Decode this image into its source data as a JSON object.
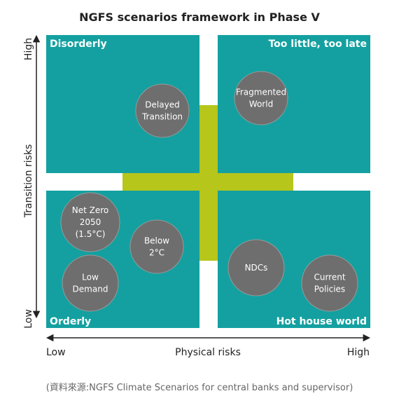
{
  "title": "NGFS scenarios framework in Phase V",
  "quadrants": [
    {
      "label": "Disorderly"
    },
    {
      "label": "Too little, too late"
    },
    {
      "label": "Orderly"
    },
    {
      "label": "Hot house world"
    }
  ],
  "scenarios": [
    {
      "lines": [
        "Delayed",
        "Transition"
      ]
    },
    {
      "lines": [
        "Fragmented",
        "World"
      ]
    },
    {
      "lines": [
        "Net Zero",
        "2050",
        "(1.5°C)"
      ]
    },
    {
      "lines": [
        "Below",
        "2°C"
      ]
    },
    {
      "lines": [
        "Low",
        "Demand"
      ]
    },
    {
      "lines": [
        "NDCs"
      ]
    },
    {
      "lines": [
        "Current",
        "Policies"
      ]
    }
  ],
  "y_axis": {
    "label": "Transition risks",
    "high": "High",
    "low": "Low"
  },
  "x_axis": {
    "label": "Physical risks",
    "low": "Low",
    "high": "High"
  },
  "caption": "(資料來源:NGFS Climate Scenarios for central banks and supervisor)"
}
